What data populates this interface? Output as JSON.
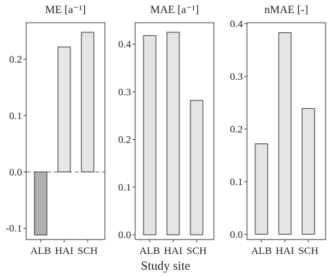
{
  "xlabel": "Study site",
  "colors": {
    "bar_fill": "#e5e5e5",
    "bar_fill_negative": "#b0b0b0",
    "bar_stroke": "#333333",
    "frame": "#333333",
    "zero_line": "#555555"
  },
  "chart_data": [
    {
      "type": "bar",
      "title": "ME [a⁻¹]",
      "categories": [
        "ALB",
        "HAI",
        "SCH"
      ],
      "values": [
        -0.112,
        0.222,
        0.248
      ],
      "ylim": [
        -0.12,
        0.265
      ],
      "yticks": [
        -0.1,
        0.0,
        0.1,
        0.2
      ],
      "ytick_labels": [
        "-0.1",
        "0.0",
        "0.1",
        "0.2"
      ],
      "zero_line": "dashed"
    },
    {
      "type": "bar",
      "title": "MAE [a⁻¹]",
      "categories": [
        "ALB",
        "HAI",
        "SCH"
      ],
      "values": [
        0.418,
        0.425,
        0.282
      ],
      "ylim": [
        -0.01,
        0.445
      ],
      "yticks": [
        0.0,
        0.1,
        0.2,
        0.3,
        0.4
      ],
      "ytick_labels": [
        "0.0",
        "0.1",
        "0.2",
        "0.3",
        "0.4"
      ]
    },
    {
      "type": "bar",
      "title": "nMAE [-]",
      "categories": [
        "ALB",
        "HAI",
        "SCH"
      ],
      "values": [
        0.172,
        0.383,
        0.239
      ],
      "ylim": [
        -0.01,
        0.402
      ],
      "yticks": [
        0.0,
        0.1,
        0.2,
        0.3,
        0.4
      ],
      "ytick_labels": [
        "0.0",
        "0.1",
        "0.2",
        "0.3",
        "0.4"
      ]
    }
  ]
}
